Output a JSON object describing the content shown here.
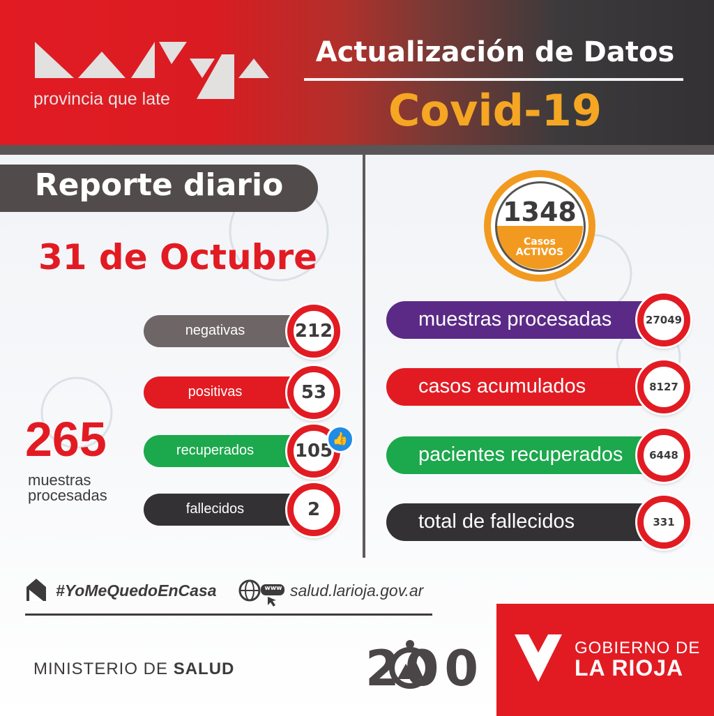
{
  "header": {
    "logo_tagline": "provincia que late",
    "title": "Actualización de Datos",
    "subtitle": "Covid-19"
  },
  "report": {
    "label": "Reporte diario",
    "date": "31 de Octubre"
  },
  "daily": {
    "total_samples": "265",
    "total_samples_label_line1": "muestras",
    "total_samples_label_line2": "procesadas",
    "items": [
      {
        "label": "negativas",
        "value": "212",
        "color": "#6d6566"
      },
      {
        "label": "positivas",
        "value": "53",
        "color": "#e21b23"
      },
      {
        "label": "recuperados",
        "value": "105",
        "color": "#1ca84c"
      },
      {
        "label": "fallecidos",
        "value": "2",
        "color": "#333134"
      }
    ]
  },
  "active": {
    "value": "1348",
    "label_line1": "Casos",
    "label_line2": "ACTIVOS"
  },
  "cumulative": {
    "items": [
      {
        "label": "muestras procesadas",
        "value": "27049",
        "color": "#5b2a86"
      },
      {
        "label": "casos acumulados",
        "value": "8127",
        "color": "#e21b23"
      },
      {
        "label": "pacientes recuperados",
        "value": "6448",
        "color": "#1ca84c"
      },
      {
        "label": "total de fallecidos",
        "value": "331",
        "color": "#333134"
      }
    ]
  },
  "footer": {
    "hashtag": "#YoMeQuedoEnCasa",
    "website": "salud.larioja.gov.ar",
    "www_badge": "www",
    "ministry_prefix": "MINISTERIO DE ",
    "ministry_bold": "SALUD",
    "government_line1": "GOBIERNO DE",
    "government_line2": "LA RIOJA",
    "anniversary": "200"
  },
  "colors": {
    "brand_red": "#e21b23",
    "accent_orange": "#f29a1f",
    "dark": "#3d3a3c"
  }
}
